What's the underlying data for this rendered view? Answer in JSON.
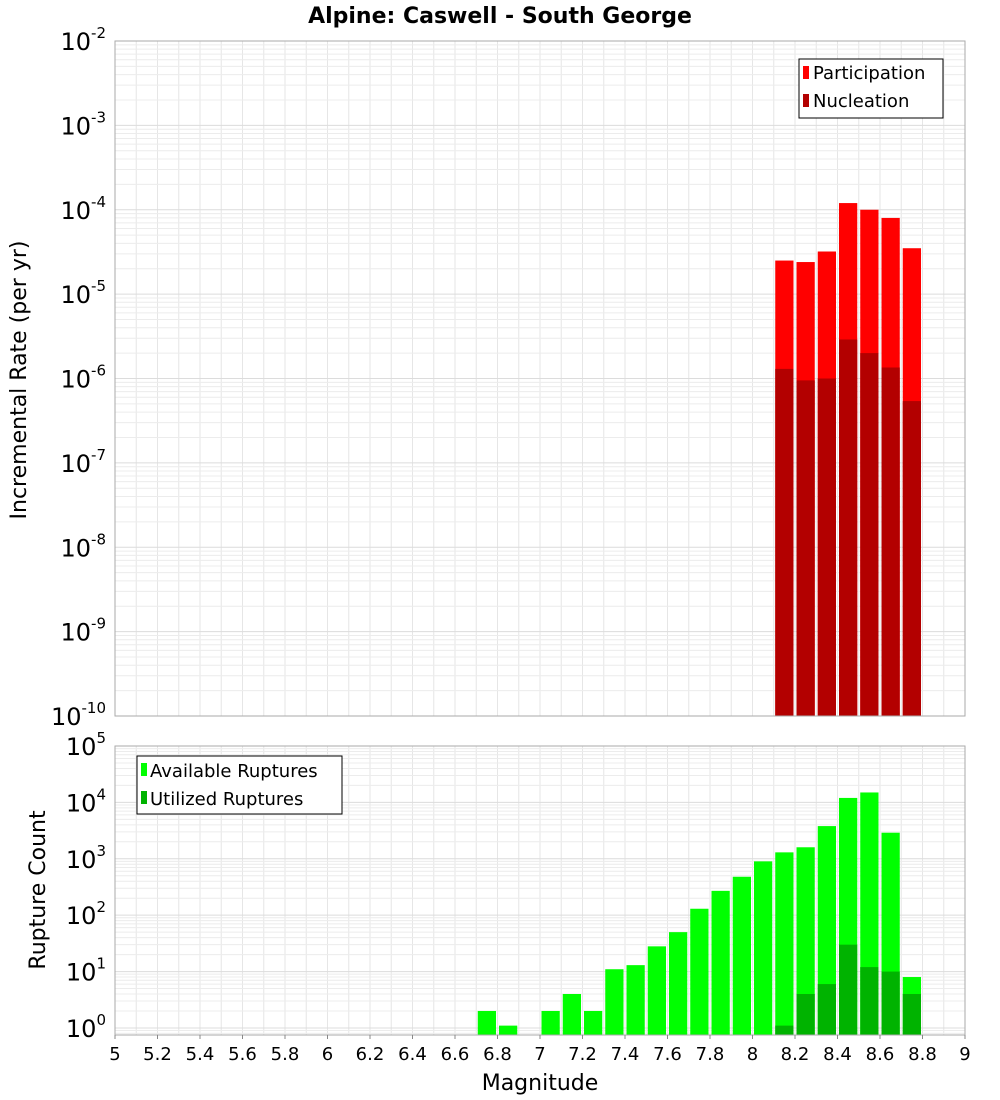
{
  "chart_data": [
    {
      "type": "bar",
      "title": "Alpine: Caswell - South George",
      "ylabel": "Incremental Rate (per yr)",
      "xlabel": "",
      "xlim": [
        5,
        9
      ],
      "ylim": [
        1e-10,
        0.01
      ],
      "yscale": "log",
      "bar_width": 0.1,
      "grid": true,
      "legend_position": "top-right",
      "series": [
        {
          "name": "Participation",
          "color": "#ff0000",
          "x": [
            8.15,
            8.25,
            8.35,
            8.45,
            8.55,
            8.65,
            8.75
          ],
          "values": [
            2.5e-05,
            2.4e-05,
            3.2e-05,
            0.00012,
            0.0001,
            8e-05,
            3.5e-05
          ]
        },
        {
          "name": "Nucleation",
          "color": "#b30000",
          "x": [
            8.15,
            8.25,
            8.35,
            8.45,
            8.55,
            8.65,
            8.75
          ],
          "values": [
            1.3e-06,
            9.5e-07,
            1e-06,
            2.9e-06,
            2e-06,
            1.35e-06,
            5.4e-07
          ]
        }
      ]
    },
    {
      "type": "bar",
      "title": "",
      "ylabel": "Rupture Count",
      "xlabel": "Magnitude",
      "xlim": [
        5,
        9
      ],
      "ylim": [
        0.75,
        100000.0
      ],
      "yscale": "log",
      "bar_width": 0.1,
      "grid": true,
      "legend_position": "top-left",
      "xticks": [
        "5",
        "5.2",
        "5.4",
        "5.6",
        "5.8",
        "6",
        "6.2",
        "6.4",
        "6.6",
        "6.8",
        "7",
        "7.2",
        "7.4",
        "7.6",
        "7.8",
        "8",
        "8.2",
        "8.4",
        "8.6",
        "8.8",
        "9"
      ],
      "series": [
        {
          "name": "Available Ruptures",
          "color": "#00ff00",
          "x": [
            6.75,
            6.85,
            7.05,
            7.15,
            7.25,
            7.35,
            7.45,
            7.55,
            7.65,
            7.75,
            7.85,
            7.95,
            8.05,
            8.15,
            8.25,
            8.35,
            8.45,
            8.55,
            8.65,
            8.75
          ],
          "values": [
            2,
            1.1,
            2,
            4,
            2,
            11,
            13,
            28,
            50,
            130,
            270,
            480,
            900,
            1300,
            1600,
            3800,
            12000,
            15000,
            2900,
            8
          ]
        },
        {
          "name": "Utilized Ruptures",
          "color": "#00b300",
          "x": [
            8.15,
            8.25,
            8.35,
            8.45,
            8.55,
            8.65,
            8.75
          ],
          "values": [
            1.1,
            4,
            6,
            30,
            12,
            10,
            4
          ]
        }
      ]
    }
  ],
  "top_yticks_exponents": [
    "-2",
    "-3",
    "-4",
    "-5",
    "-6",
    "-7",
    "-8",
    "-9",
    "-10"
  ],
  "bottom_yticks_exponents": [
    "5",
    "4",
    "3",
    "2",
    "1",
    "0"
  ],
  "ytick_base": "10"
}
